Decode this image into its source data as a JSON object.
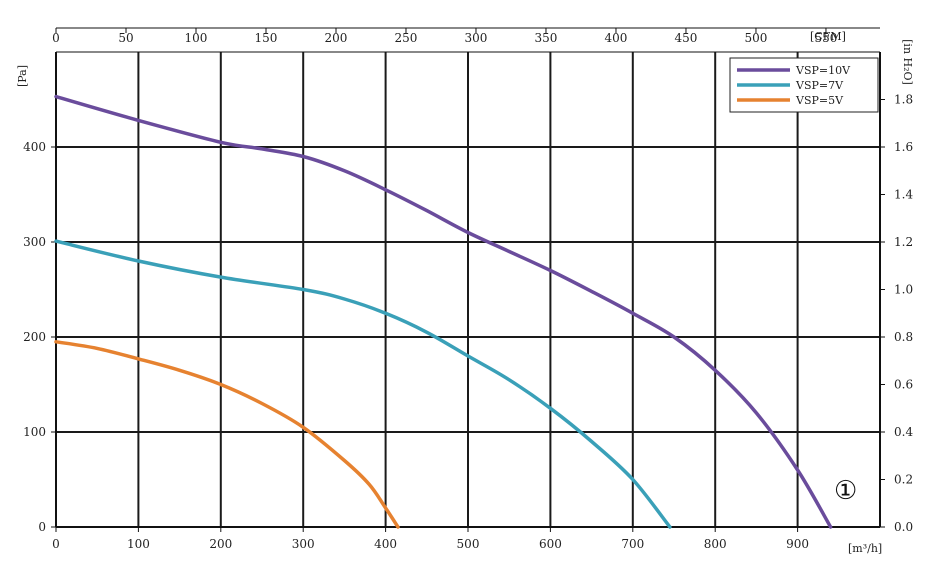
{
  "chart_data": {
    "type": "line",
    "x_axis": {
      "unit_label": "[m³/h]",
      "range": [
        0,
        1000
      ],
      "ticks": [
        0,
        100,
        200,
        300,
        400,
        500,
        600,
        700,
        800,
        900
      ]
    },
    "x2_axis": {
      "unit_label": "[CFM]",
      "range": [
        0,
        588.6
      ],
      "ticks": [
        0,
        50,
        100,
        150,
        200,
        250,
        300,
        350,
        400,
        450,
        500,
        550
      ]
    },
    "y_axis": {
      "unit_label": "[Pa]",
      "range": [
        0,
        500
      ],
      "ticks": [
        0,
        100,
        200,
        300,
        400
      ]
    },
    "y2_axis": {
      "unit_label": "[in H₂O]",
      "range": [
        0,
        2.0
      ],
      "ticks": [
        "0.0",
        "0.2",
        "0.4",
        "0.6",
        "0.8",
        "1.0",
        "1.2",
        "1.4",
        "1.6",
        "1.8"
      ]
    },
    "grid": true,
    "legend_position": "top-right",
    "marker_label": "①",
    "series": [
      {
        "name": "VSP=10V",
        "color": "#6a4c9c",
        "x": [
          0,
          100,
          200,
          250,
          300,
          350,
          400,
          450,
          500,
          550,
          600,
          650,
          700,
          750,
          800,
          850,
          900,
          940
        ],
        "y": [
          453,
          428,
          405,
          398,
          390,
          375,
          355,
          333,
          310,
          290,
          270,
          248,
          225,
          200,
          165,
          120,
          60,
          0
        ]
      },
      {
        "name": "VSP=7V",
        "color": "#3aa0b8",
        "x": [
          0,
          100,
          200,
          300,
          350,
          400,
          450,
          500,
          550,
          600,
          650,
          700,
          745
        ],
        "y": [
          301,
          280,
          263,
          250,
          240,
          225,
          205,
          180,
          155,
          125,
          90,
          50,
          0
        ]
      },
      {
        "name": "VSP=5V",
        "color": "#e68230",
        "x": [
          0,
          50,
          100,
          150,
          200,
          250,
          300,
          350,
          380,
          400,
          415
        ],
        "y": [
          195,
          188,
          177,
          165,
          150,
          130,
          105,
          70,
          45,
          20,
          0
        ]
      }
    ]
  }
}
